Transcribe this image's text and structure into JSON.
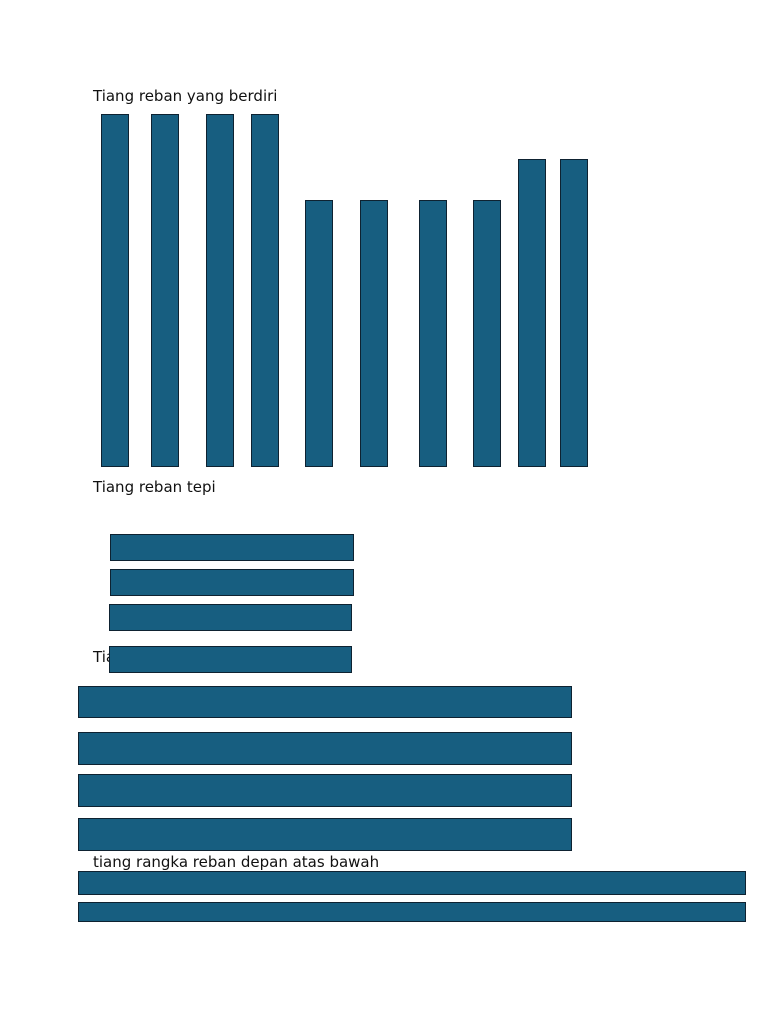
{
  "sections": [
    {
      "label": "Tiang reban yang berdiri",
      "part": "standing-posts",
      "count": 10
    },
    {
      "label": "Tiang reban tepi",
      "part": "side-posts",
      "count": 4
    },
    {
      "label": "Tia",
      "part": "long-posts",
      "count": 4
    },
    {
      "label": "tiang rangka reban depan atas bawah",
      "part": "front-frame-posts",
      "count": 2
    }
  ],
  "colors": {
    "post_fill": "#175e80",
    "post_stroke": "#0e2231",
    "text": "#111111",
    "background": "#ffffff"
  }
}
